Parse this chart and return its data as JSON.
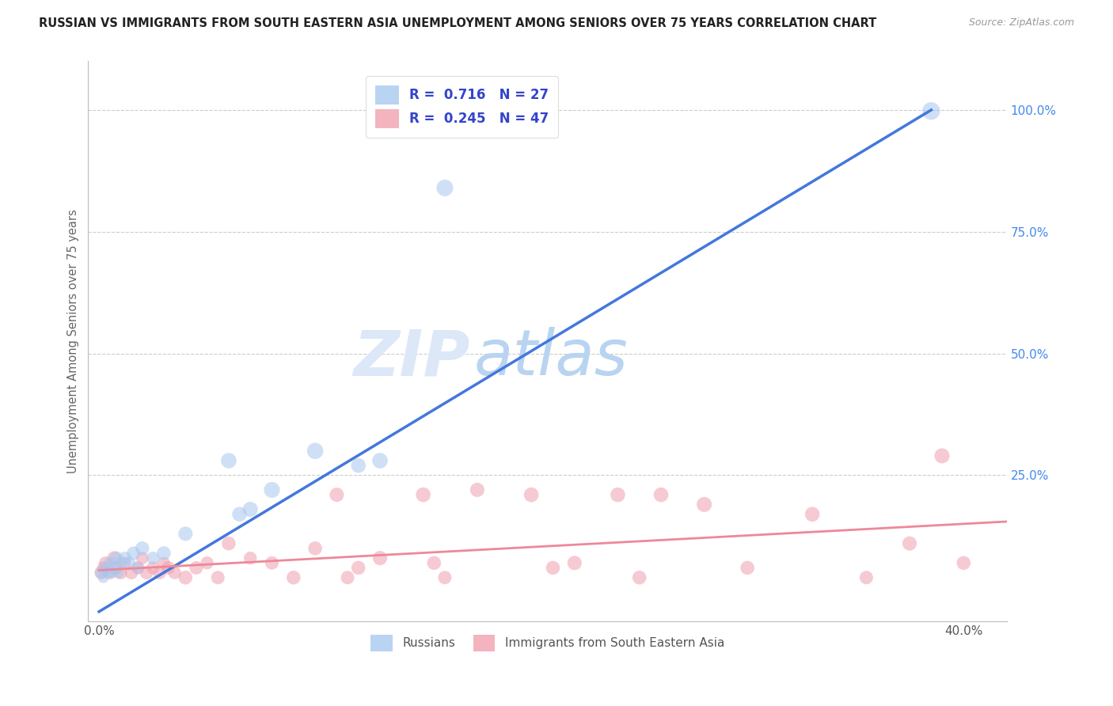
{
  "title": "RUSSIAN VS IMMIGRANTS FROM SOUTH EASTERN ASIA UNEMPLOYMENT AMONG SENIORS OVER 75 YEARS CORRELATION CHART",
  "source": "Source: ZipAtlas.com",
  "ylabel_left": "Unemployment Among Seniors over 75 years",
  "xlim": [
    -0.005,
    0.42
  ],
  "ylim": [
    -0.05,
    1.1
  ],
  "russian_R": 0.716,
  "russian_N": 27,
  "immigrant_R": 0.245,
  "immigrant_N": 47,
  "blue_color": "#a8c8f0",
  "pink_color": "#f0a0b0",
  "blue_line_color": "#4477dd",
  "pink_line_color": "#ee8899",
  "watermark_color": "#dce8f8",
  "legend_R_color": "#3344cc",
  "background_color": "#ffffff",
  "grid_color": "#cccccc",
  "title_color": "#222222",
  "russians_x": [
    0.001,
    0.002,
    0.003,
    0.004,
    0.005,
    0.006,
    0.007,
    0.008,
    0.009,
    0.01,
    0.012,
    0.014,
    0.016,
    0.018,
    0.02,
    0.025,
    0.03,
    0.04,
    0.06,
    0.065,
    0.07,
    0.08,
    0.1,
    0.12,
    0.13,
    0.16,
    0.385
  ],
  "russians_y": [
    0.05,
    0.04,
    0.06,
    0.05,
    0.07,
    0.05,
    0.06,
    0.08,
    0.05,
    0.07,
    0.08,
    0.07,
    0.09,
    0.06,
    0.1,
    0.08,
    0.09,
    0.13,
    0.28,
    0.17,
    0.18,
    0.22,
    0.3,
    0.27,
    0.28,
    0.84,
    0.998
  ],
  "russians_size": [
    120,
    100,
    130,
    110,
    120,
    100,
    130,
    150,
    110,
    130,
    140,
    130,
    150,
    120,
    160,
    140,
    160,
    170,
    200,
    180,
    190,
    210,
    220,
    180,
    200,
    230,
    260
  ],
  "immigrants_x": [
    0.001,
    0.002,
    0.003,
    0.005,
    0.007,
    0.008,
    0.01,
    0.012,
    0.015,
    0.018,
    0.02,
    0.022,
    0.025,
    0.028,
    0.03,
    0.032,
    0.035,
    0.04,
    0.045,
    0.05,
    0.055,
    0.06,
    0.07,
    0.08,
    0.09,
    0.1,
    0.11,
    0.115,
    0.12,
    0.13,
    0.15,
    0.155,
    0.16,
    0.175,
    0.2,
    0.21,
    0.22,
    0.24,
    0.25,
    0.26,
    0.28,
    0.3,
    0.33,
    0.355,
    0.375,
    0.39,
    0.4
  ],
  "immigrants_y": [
    0.05,
    0.06,
    0.07,
    0.05,
    0.08,
    0.06,
    0.05,
    0.07,
    0.05,
    0.06,
    0.08,
    0.05,
    0.06,
    0.05,
    0.07,
    0.06,
    0.05,
    0.04,
    0.06,
    0.07,
    0.04,
    0.11,
    0.08,
    0.07,
    0.04,
    0.1,
    0.21,
    0.04,
    0.06,
    0.08,
    0.21,
    0.07,
    0.04,
    0.22,
    0.21,
    0.06,
    0.07,
    0.21,
    0.04,
    0.21,
    0.19,
    0.06,
    0.17,
    0.04,
    0.11,
    0.29,
    0.07
  ],
  "immigrants_size": [
    150,
    130,
    140,
    150,
    160,
    140,
    150,
    130,
    150,
    140,
    130,
    150,
    140,
    150,
    130,
    150,
    140,
    160,
    150,
    140,
    150,
    160,
    140,
    150,
    160,
    160,
    170,
    150,
    160,
    170,
    180,
    160,
    150,
    170,
    180,
    160,
    170,
    180,
    160,
    180,
    190,
    160,
    180,
    150,
    170,
    190,
    160
  ],
  "blue_line_x0": 0.0,
  "blue_line_y0": -0.03,
  "blue_line_x1": 0.385,
  "blue_line_y1": 1.0,
  "pink_line_x0": 0.0,
  "pink_line_y0": 0.055,
  "pink_line_x1": 0.42,
  "pink_line_y1": 0.155
}
